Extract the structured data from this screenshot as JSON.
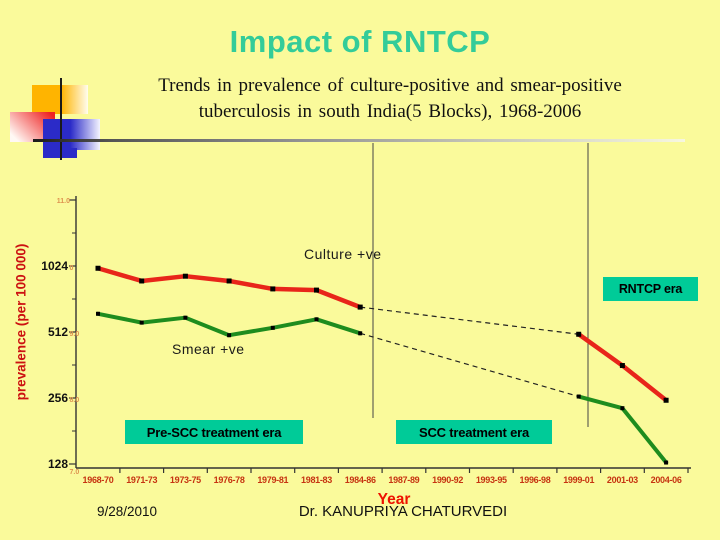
{
  "slide": {
    "title": "Impact of RNTCP",
    "subtitle_line1": "Trends in prevalence of culture-positive and smear-positive",
    "subtitle_line2": "tuberculosis in south India(5 Blocks), 1968-2006",
    "footer_date": "9/28/2010",
    "footer_author": "Dr. KANUPRIYA CHATURVEDI"
  },
  "colors": {
    "background": "#FAFA9B",
    "title": "#33CC99",
    "era_box": "#00CB98",
    "culture_line": "#E8251A",
    "smear_line": "#1E8C1E",
    "axis_text_red": "#C63311"
  },
  "chart_data": {
    "type": "line",
    "title": "",
    "xlabel": "Year",
    "ylabel": "prevalence (per 100 000)",
    "y_scale": "log2",
    "ylim_log2": [
      7,
      11
    ],
    "grid": false,
    "categories": [
      "1968-70",
      "1971-73",
      "1973-75",
      "1976-78",
      "1979-81",
      "1981-83",
      "1984-86",
      "1987-89",
      "1990-92",
      "1993-95",
      "1996-98",
      "1999-01",
      "2001-03",
      "2004-06"
    ],
    "y_ticks": [
      {
        "value": 2048,
        "label": "",
        "remnant": "11.0",
        "remnant_dy": 0
      },
      {
        "value": 1024,
        "label": "1024",
        "remnant": "0",
        "remnant_dy": 0
      },
      {
        "value": 512,
        "label": "512",
        "remnant": "9.0",
        "remnant_dy": 0
      },
      {
        "value": 256,
        "label": "256",
        "remnant": "8.0",
        "remnant_dy": 0
      },
      {
        "value": 128,
        "label": "128",
        "remnant": "7.0",
        "remnant_dy": 6
      }
    ],
    "series": [
      {
        "name": "culture-positive",
        "label": "Culture +ve",
        "color": "#E8251A",
        "values": [
          1000,
          875,
          920,
          875,
          805,
          795,
          665,
          null,
          null,
          null,
          null,
          500,
          360,
          250
        ]
      },
      {
        "name": "smear-positive",
        "label": "Smear +ve",
        "color": "#1E8C1E",
        "values": [
          620,
          565,
          595,
          495,
          535,
          585,
          505,
          null,
          null,
          null,
          null,
          260,
          230,
          130
        ]
      }
    ],
    "gap": {
      "from_index": 6,
      "to_index": 11,
      "style": "dashed-black"
    },
    "eras": [
      {
        "label": "Pre-SCC treatment era"
      },
      {
        "label": "SCC treatment era"
      },
      {
        "label": "RNTCP era"
      }
    ]
  }
}
